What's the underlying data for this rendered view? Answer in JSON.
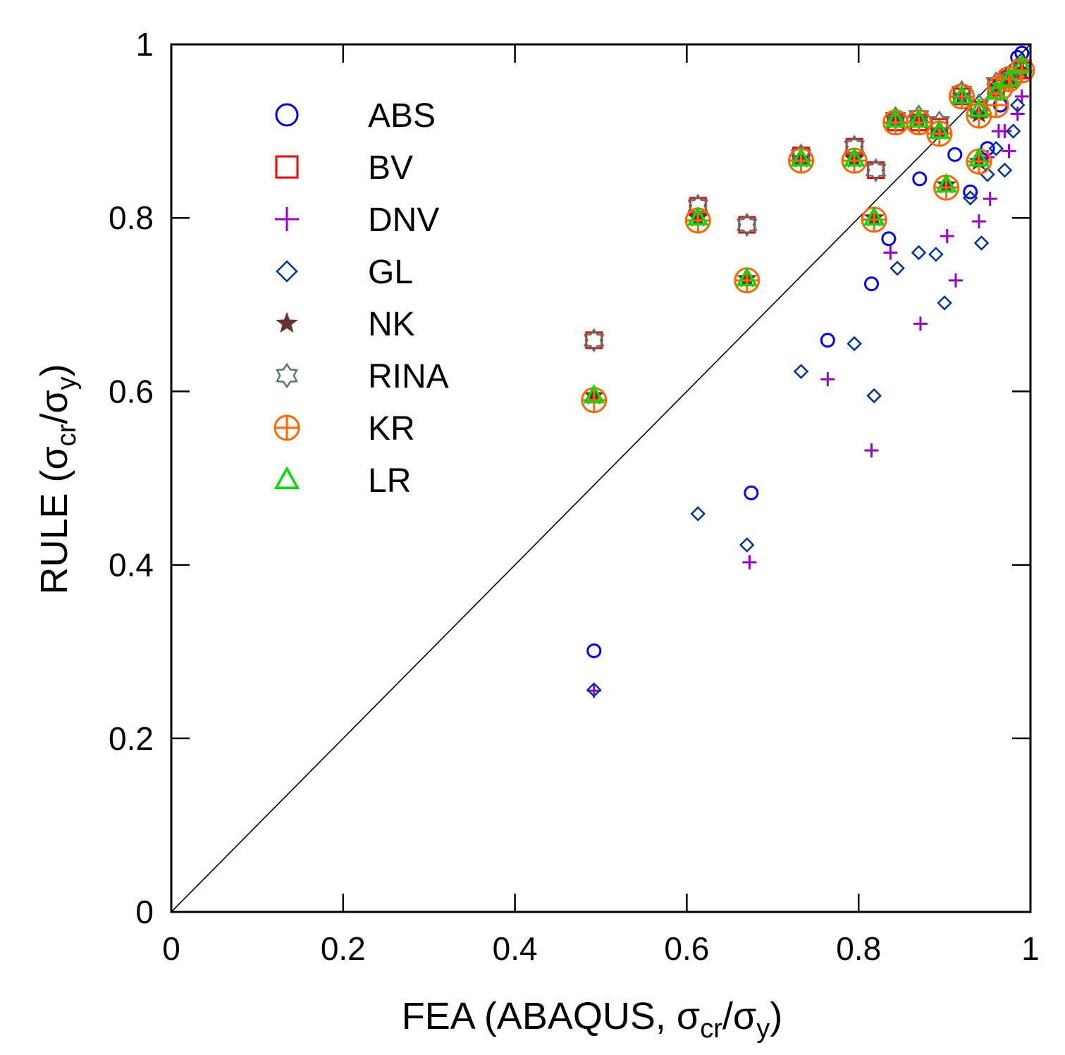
{
  "chart_data": {
    "type": "scatter",
    "title": "",
    "xlabel": {
      "main": "FEA (ABAQUS, ",
      "sym1": "σ",
      "sub1": "cr",
      "slash": "/",
      "sym2": "σ",
      "sub2": "y",
      "close": ")"
    },
    "ylabel": {
      "main": "RULE (",
      "sym1": "σ",
      "sub1": "cr",
      "slash": "/",
      "sym2": "σ",
      "sub2": "y",
      "close": ")"
    },
    "xlim": [
      0,
      1
    ],
    "ylim": [
      0,
      1
    ],
    "xticks": [
      0,
      0.2,
      0.4,
      0.6,
      0.8,
      1
    ],
    "yticks": [
      0,
      0.2,
      0.4,
      0.6,
      0.8,
      1
    ],
    "xtick_labels": [
      "0",
      "0.2",
      "0.4",
      "0.6",
      "0.8",
      "1"
    ],
    "ytick_labels": [
      "0",
      "0.2",
      "0.4",
      "0.6",
      "0.8",
      "1"
    ],
    "grid": false,
    "legend_position": "top-left",
    "reference_line": {
      "name": "y = x",
      "points": [
        [
          0,
          0
        ],
        [
          1,
          1
        ]
      ]
    },
    "series": [
      {
        "name": "ABS",
        "marker": "circle",
        "color": "#0000ff",
        "points": [
          [
            0.492,
            0.301
          ],
          [
            0.675,
            0.483
          ],
          [
            0.764,
            0.659
          ],
          [
            0.815,
            0.724
          ],
          [
            0.835,
            0.776
          ],
          [
            0.871,
            0.845
          ],
          [
            0.912,
            0.873
          ],
          [
            0.93,
            0.83
          ],
          [
            0.95,
            0.88
          ],
          [
            0.965,
            0.93
          ],
          [
            0.975,
            0.96
          ],
          [
            0.985,
            0.985
          ],
          [
            0.99,
            0.99
          ]
        ]
      },
      {
        "name": "BV",
        "marker": "square",
        "color": "#ff0000",
        "points": [
          [
            0.492,
            0.659
          ],
          [
            0.613,
            0.814
          ],
          [
            0.67,
            0.792
          ],
          [
            0.733,
            0.872
          ],
          [
            0.795,
            0.882
          ],
          [
            0.82,
            0.855
          ],
          [
            0.843,
            0.91
          ],
          [
            0.87,
            0.91
          ],
          [
            0.894,
            0.905
          ],
          [
            0.92,
            0.94
          ],
          [
            0.94,
            0.925
          ],
          [
            0.96,
            0.95
          ],
          [
            0.975,
            0.96
          ],
          [
            0.99,
            0.97
          ]
        ]
      },
      {
        "name": "DNV",
        "marker": "plus",
        "color": "#9900cc",
        "points": [
          [
            0.492,
            0.255
          ],
          [
            0.673,
            0.403
          ],
          [
            0.764,
            0.614
          ],
          [
            0.815,
            0.532
          ],
          [
            0.837,
            0.76
          ],
          [
            0.872,
            0.678
          ],
          [
            0.903,
            0.779
          ],
          [
            0.913,
            0.728
          ],
          [
            0.94,
            0.796
          ],
          [
            0.953,
            0.822
          ],
          [
            0.963,
            0.9
          ],
          [
            0.975,
            0.877
          ],
          [
            0.985,
            0.92
          ],
          [
            0.99,
            0.94
          ],
          [
            0.95,
            0.87
          ],
          [
            0.97,
            0.9
          ]
        ]
      },
      {
        "name": "GL",
        "marker": "diamond",
        "color": "#003399",
        "points": [
          [
            0.492,
            0.256
          ],
          [
            0.613,
            0.459
          ],
          [
            0.67,
            0.423
          ],
          [
            0.733,
            0.623
          ],
          [
            0.795,
            0.655
          ],
          [
            0.818,
            0.595
          ],
          [
            0.845,
            0.742
          ],
          [
            0.87,
            0.76
          ],
          [
            0.89,
            0.758
          ],
          [
            0.9,
            0.702
          ],
          [
            0.93,
            0.823
          ],
          [
            0.943,
            0.771
          ],
          [
            0.95,
            0.85
          ],
          [
            0.96,
            0.88
          ],
          [
            0.97,
            0.855
          ],
          [
            0.98,
            0.9
          ],
          [
            0.985,
            0.93
          ]
        ]
      },
      {
        "name": "NK",
        "marker": "star",
        "color": "#663333",
        "points": [
          [
            0.492,
            0.595
          ],
          [
            0.613,
            0.8
          ],
          [
            0.67,
            0.73
          ],
          [
            0.733,
            0.868
          ],
          [
            0.795,
            0.868
          ],
          [
            0.818,
            0.8
          ],
          [
            0.843,
            0.913
          ],
          [
            0.87,
            0.913
          ],
          [
            0.894,
            0.9
          ],
          [
            0.902,
            0.838
          ],
          [
            0.92,
            0.94
          ],
          [
            0.94,
            0.865
          ],
          [
            0.94,
            0.92
          ],
          [
            0.96,
            0.95
          ],
          [
            0.975,
            0.96
          ],
          [
            0.99,
            0.97
          ]
        ]
      },
      {
        "name": "RINA",
        "marker": "hexagram",
        "color": "#557777",
        "points": [
          [
            0.492,
            0.659
          ],
          [
            0.613,
            0.814
          ],
          [
            0.67,
            0.792
          ],
          [
            0.733,
            0.872
          ],
          [
            0.795,
            0.882
          ],
          [
            0.82,
            0.855
          ],
          [
            0.843,
            0.915
          ],
          [
            0.87,
            0.917
          ],
          [
            0.894,
            0.91
          ],
          [
            0.92,
            0.945
          ],
          [
            0.94,
            0.93
          ],
          [
            0.96,
            0.955
          ],
          [
            0.975,
            0.96
          ],
          [
            0.99,
            0.975
          ]
        ]
      },
      {
        "name": "KR",
        "marker": "circle-plus",
        "color": "#ff6600",
        "points": [
          [
            0.492,
            0.59
          ],
          [
            0.613,
            0.797
          ],
          [
            0.67,
            0.728
          ],
          [
            0.733,
            0.866
          ],
          [
            0.795,
            0.866
          ],
          [
            0.818,
            0.798
          ],
          [
            0.843,
            0.91
          ],
          [
            0.87,
            0.91
          ],
          [
            0.894,
            0.897
          ],
          [
            0.902,
            0.835
          ],
          [
            0.92,
            0.94
          ],
          [
            0.94,
            0.865
          ],
          [
            0.94,
            0.918
          ],
          [
            0.96,
            0.93
          ],
          [
            0.965,
            0.95
          ],
          [
            0.975,
            0.96
          ],
          [
            0.99,
            0.97
          ]
        ]
      },
      {
        "name": "LR",
        "marker": "triangle",
        "color": "#00dd00",
        "points": [
          [
            0.492,
            0.595
          ],
          [
            0.613,
            0.8
          ],
          [
            0.67,
            0.73
          ],
          [
            0.733,
            0.868
          ],
          [
            0.795,
            0.868
          ],
          [
            0.818,
            0.8
          ],
          [
            0.843,
            0.913
          ],
          [
            0.87,
            0.913
          ],
          [
            0.894,
            0.9
          ],
          [
            0.902,
            0.838
          ],
          [
            0.92,
            0.94
          ],
          [
            0.94,
            0.868
          ],
          [
            0.94,
            0.925
          ],
          [
            0.96,
            0.945
          ],
          [
            0.975,
            0.96
          ],
          [
            0.99,
            0.975
          ]
        ]
      }
    ]
  }
}
